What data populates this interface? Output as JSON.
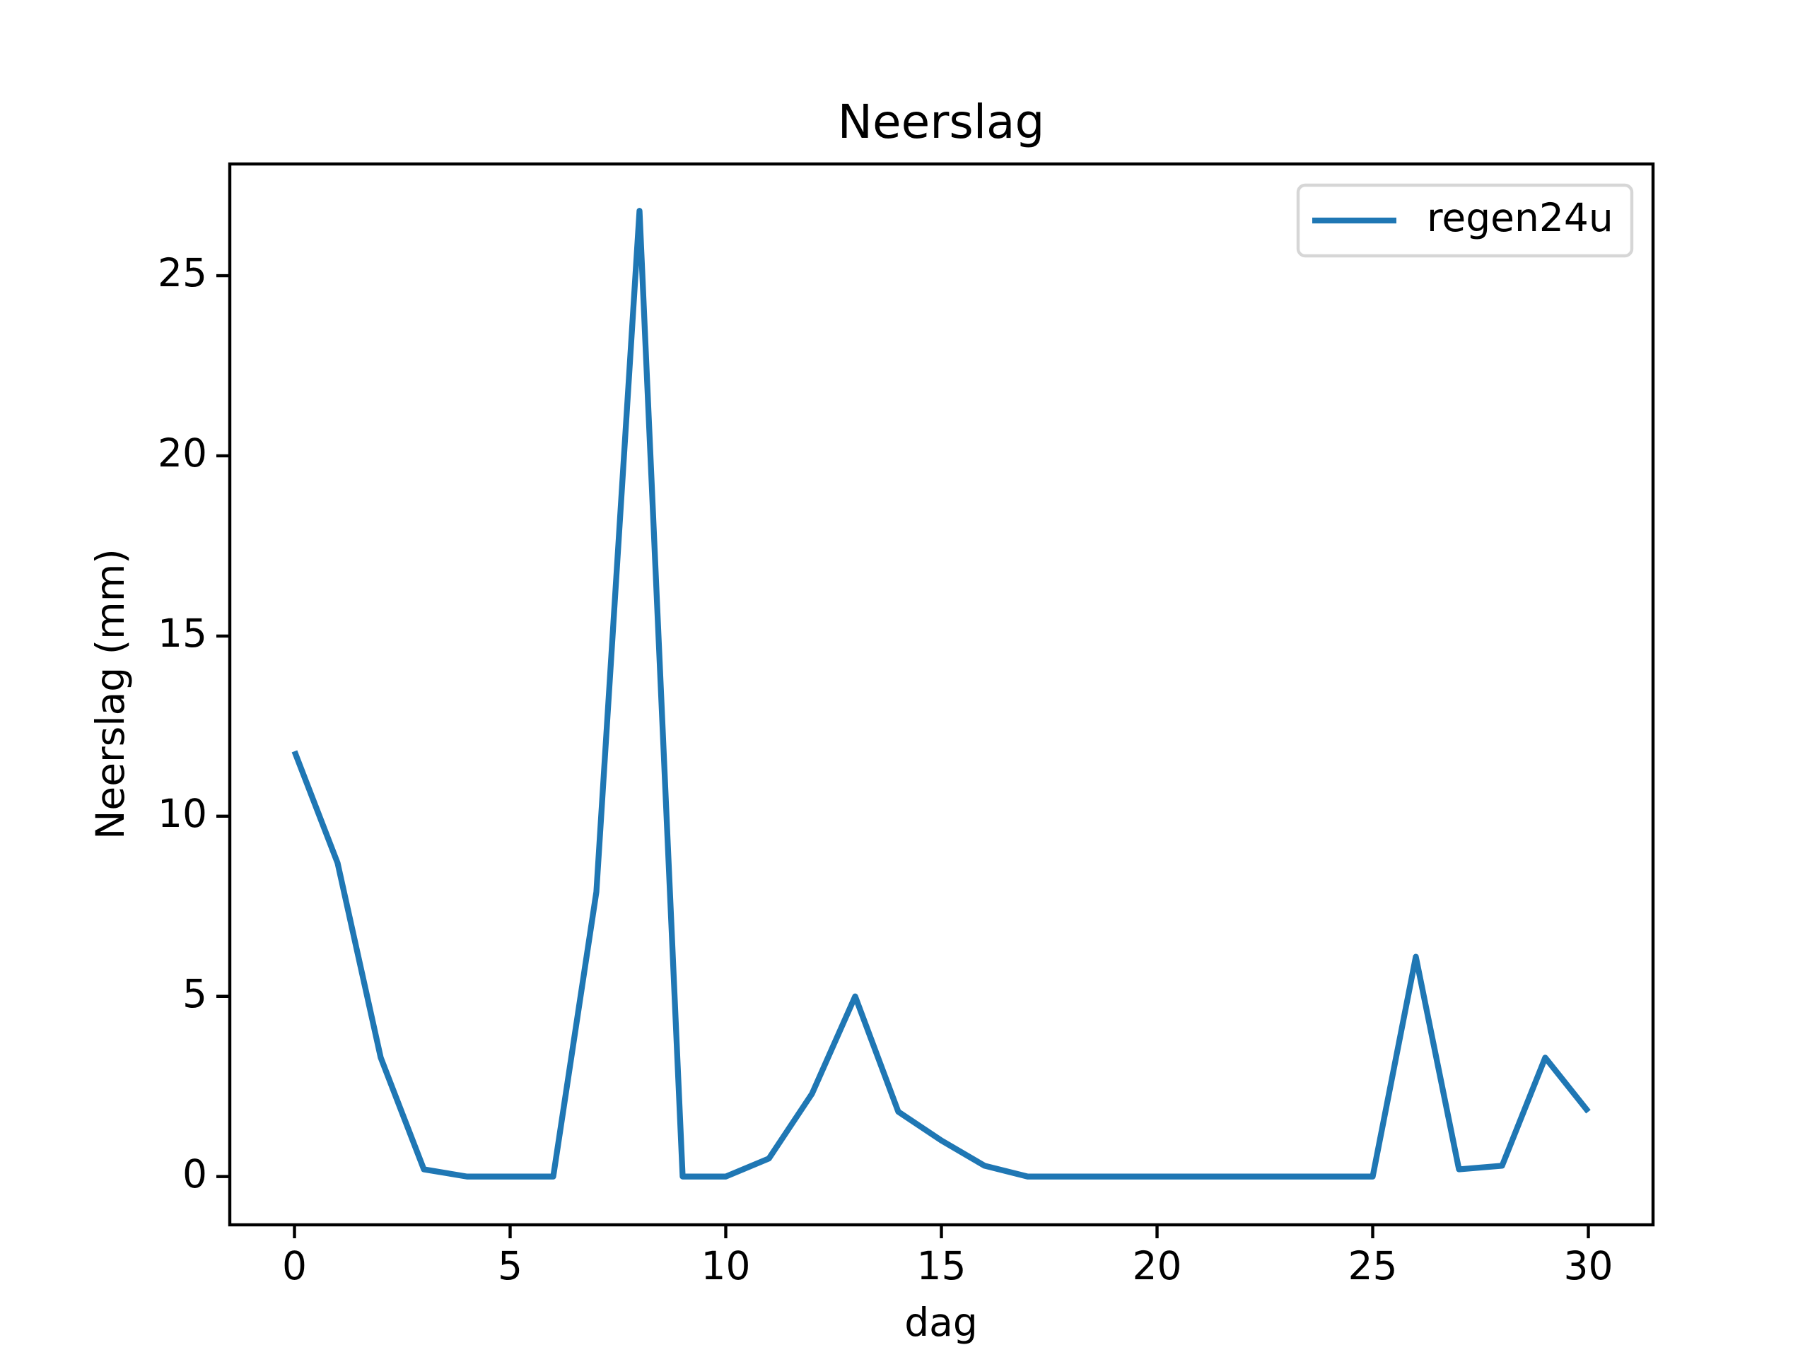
{
  "chart_data": {
    "type": "line",
    "title": "Neerslag",
    "xlabel": "dag",
    "ylabel": "Neerslag (mm)",
    "x": [
      0,
      1,
      2,
      3,
      4,
      5,
      6,
      7,
      8,
      9,
      10,
      11,
      12,
      13,
      14,
      15,
      16,
      17,
      18,
      19,
      20,
      21,
      22,
      23,
      24,
      25,
      26,
      27,
      28,
      29,
      30
    ],
    "series": [
      {
        "name": "regen24u",
        "color": "#1f77b4",
        "values": [
          11.8,
          8.7,
          3.3,
          0.2,
          0,
          0,
          0,
          7.9,
          26.8,
          0,
          0,
          0.5,
          2.3,
          5.0,
          1.8,
          1.0,
          0.3,
          0,
          0,
          0,
          0,
          0,
          0,
          0,
          0,
          0,
          6.1,
          0.2,
          0.3,
          3.3,
          1.8
        ]
      }
    ],
    "xlim": [
      -1.5,
      31.5
    ],
    "ylim": [
      -1.34,
      28.1
    ],
    "xticks": [
      0,
      5,
      10,
      15,
      20,
      25,
      30
    ],
    "yticks": [
      0,
      5,
      10,
      15,
      20,
      25
    ],
    "grid": false,
    "legend": "upper right"
  }
}
